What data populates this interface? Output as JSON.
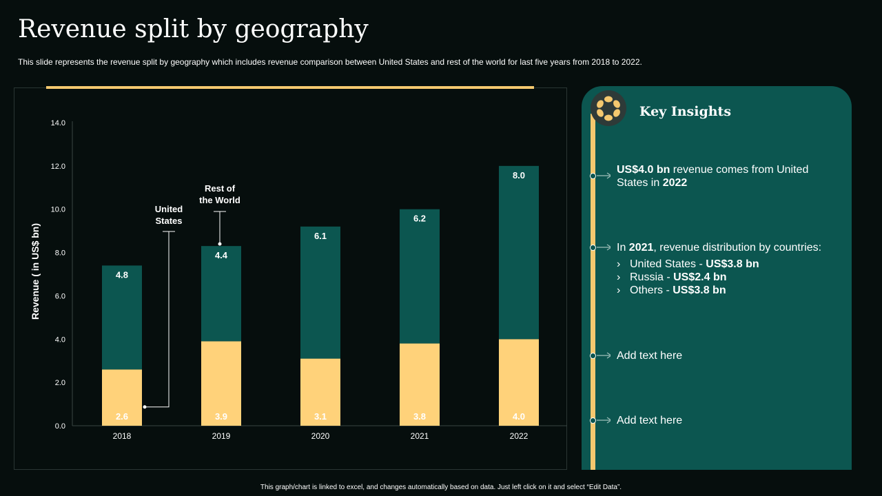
{
  "title": "Revenue split by geography",
  "subtitle": "This slide represents the revenue split by geography which includes revenue comparison between United States and rest of the world for last five years from 2018 to 2022.",
  "footer": "This graph/chart is linked to excel, and changes automatically based on data. Just left click on it and select “Edit Data”.",
  "colors": {
    "us": "#ffd27a",
    "row": "#0c5650",
    "accent": "#f4c86f",
    "panel": "#0c5650",
    "background": "#060e0d"
  },
  "chart_data": {
    "type": "bar",
    "stacked": true,
    "categories": [
      "2018",
      "2019",
      "2020",
      "2021",
      "2022"
    ],
    "series": [
      {
        "name": "United States",
        "values": [
          2.6,
          3.9,
          3.1,
          3.8,
          4.0
        ],
        "color": "#ffd27a"
      },
      {
        "name": "Rest of the World",
        "values": [
          4.8,
          4.4,
          6.1,
          6.2,
          8.0
        ],
        "color": "#0c5650"
      }
    ],
    "ylabel": "Revenue ( in US$ bn)",
    "ylim": [
      0,
      14
    ],
    "yticks": [
      "0.0",
      "2.0",
      "4.0",
      "6.0",
      "8.0",
      "10.0",
      "12.0",
      "14.0"
    ],
    "grid": false,
    "data_labels": true
  },
  "insights": {
    "title": "Key Insights",
    "icon": "gear-icon",
    "items": [
      {
        "segments": [
          {
            "text": "US$4.0 bn",
            "bold": true
          },
          {
            "text": " revenue comes from United States in ",
            "bold": false
          },
          {
            "text": "2022",
            "bold": true
          }
        ],
        "sub_items": []
      },
      {
        "segments": [
          {
            "text": "In ",
            "bold": false
          },
          {
            "text": "2021",
            "bold": true
          },
          {
            "text": ", revenue distribution by countries:",
            "bold": false
          }
        ],
        "sub_items": [
          {
            "label": "United States - ",
            "value": "US$3.8 bn"
          },
          {
            "label": "Russia - ",
            "value": "US$2.4 bn"
          },
          {
            "label": "Others - ",
            "value": "US$3.8 bn"
          }
        ]
      },
      {
        "segments": [
          {
            "text": "Add text here",
            "bold": false
          }
        ],
        "sub_items": []
      },
      {
        "segments": [
          {
            "text": "Add text here",
            "bold": false
          }
        ],
        "sub_items": []
      }
    ]
  }
}
